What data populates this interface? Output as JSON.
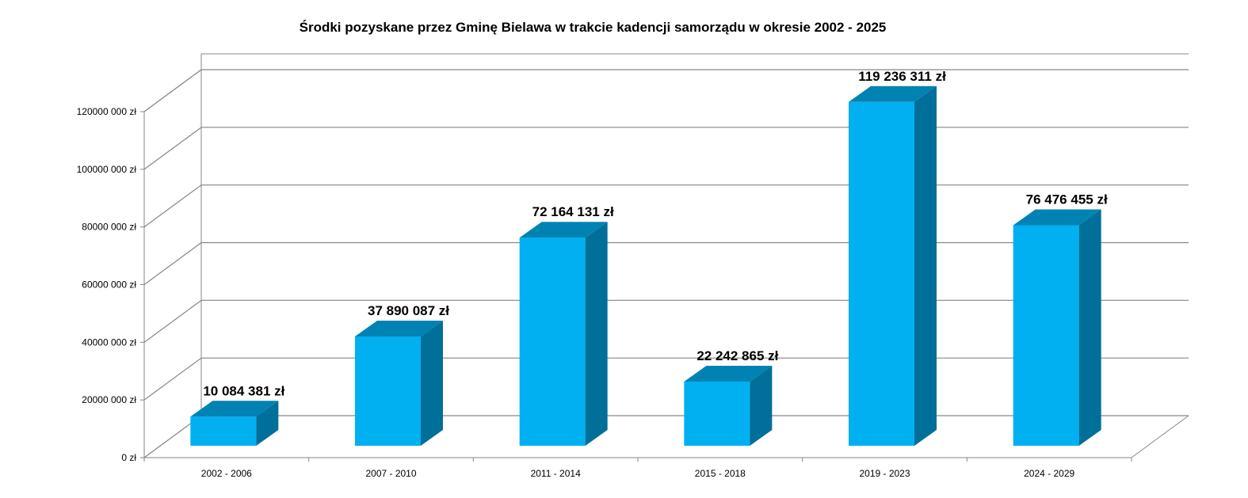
{
  "chart_data": {
    "type": "bar",
    "title": "Środki pozyskane przez Gminę Bielawa w trakcie kadencji samorządu w okresie 2002 - 2025",
    "xlabel": "",
    "ylabel": "",
    "categories": [
      "2002 - 2006",
      "2007 - 2010",
      "2011 - 2014",
      "2015 - 2018",
      "2019 - 2023",
      "2024 - 2029"
    ],
    "values": [
      10084381,
      37890087,
      72164131,
      22242865,
      119236311,
      76476455
    ],
    "data_labels": [
      "10 084 381 zł",
      "37 890 087 zł",
      "72 164 131 zł",
      "22 242 865 zł",
      "119 236 311 zł",
      "76 476 455 zł"
    ],
    "ylim": [
      0,
      120000000
    ],
    "y_ticks": [
      0,
      20000000,
      40000000,
      60000000,
      80000000,
      100000000,
      120000000
    ],
    "y_tick_labels": [
      "0 zł",
      "20000 000 zł",
      "40000 000 zł",
      "60000 000 zł",
      "80000 000 zł",
      "100000 000 zł",
      "120000 000 zł"
    ],
    "grid": true,
    "style": "3d-column",
    "colors": {
      "front": "#00B0F0",
      "top": "#0083B3",
      "side": "#006F99",
      "grid": "#868686"
    }
  }
}
